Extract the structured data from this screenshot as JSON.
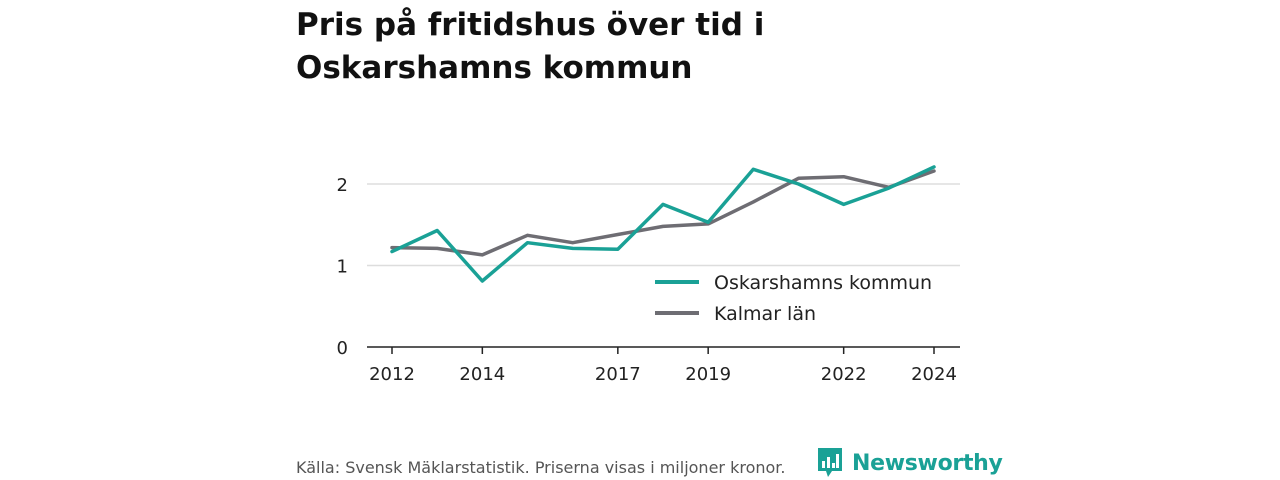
{
  "title_lines": [
    "Pris på fritidshus över tid i",
    "Oskarshamns kommun"
  ],
  "footer": "Källa: Svensk Mäklarstatistik. Priserna visas i miljoner kronor.",
  "brand": "Newsworthy",
  "chart_data": {
    "type": "line",
    "x": [
      2012,
      2013,
      2014,
      2015,
      2016,
      2017,
      2018,
      2019,
      2020,
      2021,
      2022,
      2023,
      2024
    ],
    "xticks": [
      2012,
      2014,
      2017,
      2019,
      2022,
      2024
    ],
    "yticks": [
      0,
      1,
      2
    ],
    "ylim": [
      0,
      2.5
    ],
    "xlim": [
      2012,
      2024
    ],
    "grid": "horizontal",
    "legend_position": "bottom-right",
    "series": [
      {
        "name": "Oskarshamns kommun",
        "color": "#1aa196",
        "values": [
          1.17,
          1.43,
          0.81,
          1.28,
          1.21,
          1.2,
          1.75,
          1.53,
          2.18,
          2.0,
          1.75,
          1.95,
          2.21
        ]
      },
      {
        "name": "Kalmar län",
        "color": "#6e6d73",
        "values": [
          1.22,
          1.21,
          1.13,
          1.37,
          1.28,
          1.38,
          1.48,
          1.51,
          1.78,
          2.07,
          2.09,
          1.96,
          2.16
        ]
      }
    ]
  }
}
